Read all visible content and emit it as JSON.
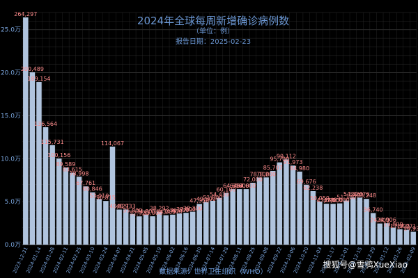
{
  "chart_data": {
    "type": "bar",
    "title": "2024年全球每周新增确诊病例数",
    "subtitle": "（单位：例）",
    "report_date": "报告日期：2025-02-23",
    "xlabel": "数据来源：世界卫生组织（WHO）",
    "ylabel": "",
    "ylim": [
      0,
      270000
    ],
    "y_ticks": [
      0,
      50000,
      100000,
      150000,
      200000,
      250000
    ],
    "y_tick_labels": [
      "0.0万",
      "5.0万",
      "10.0万",
      "15.0万",
      "20.0万",
      "25.0万"
    ],
    "grid": true,
    "bar_color": "#b0c4de",
    "label_color": "#ff8c8c",
    "categories": [
      "2023-12-31",
      "2024-01-07",
      "2024-01-14",
      "2024-01-21",
      "2024-01-28",
      "2024-02-04",
      "2024-02-11",
      "2024-02-18",
      "2024-02-25",
      "2024-03-03",
      "2024-03-10",
      "2024-03-17",
      "2024-03-24",
      "2024-03-31",
      "2024-04-07",
      "2024-04-14",
      "2024-04-21",
      "2024-04-28",
      "2024-05-05",
      "2024-05-12",
      "2024-05-19",
      "2024-05-26",
      "2024-06-02",
      "2024-06-09",
      "2024-06-16",
      "2024-06-23",
      "2024-06-30",
      "2024-07-07",
      "2024-07-14",
      "2024-07-21",
      "2024-07-28",
      "2024-08-04",
      "2024-08-11",
      "2024-08-18",
      "2024-08-25",
      "2024-09-01",
      "2024-09-08",
      "2024-09-15",
      "2024-09-22",
      "2024-09-29",
      "2024-10-06",
      "2024-10-13",
      "2024-10-20",
      "2024-10-27",
      "2024-11-03",
      "2024-11-10",
      "2024-11-17",
      "2024-11-24",
      "2024-12-01",
      "2024-12-08",
      "2024-12-15",
      "2024-12-22",
      "2024-12-29",
      "2025-01-05",
      "2025-01-12",
      "2025-01-19",
      "2025-01-26",
      "2025-02-02",
      "2025-02-09"
    ],
    "x_tick_labels": [
      "2023-12-31",
      "2024-01-14",
      "2024-01-28",
      "2024-02-11",
      "2024-02-25",
      "2024-03-10",
      "2024-03-24",
      "2024-04-07",
      "2024-04-21",
      "2024-05-05",
      "2024-05-19",
      "2024-06-02",
      "2024-06-16",
      "2024-06-30",
      "2024-07-14",
      "2024-07-28",
      "2024-08-11",
      "2024-08-25",
      "2024-09-08",
      "2024-09-22",
      "2024-10-06",
      "2024-10-20",
      "2024-11-03",
      "2024-11-17",
      "2024-12-01",
      "2024-12-15",
      "2024-12-29",
      "2025-01-12",
      "2025-01-26",
      "2025-02-09"
    ],
    "values": [
      264297,
      200489,
      189154,
      136564,
      115731,
      100156,
      89589,
      83615,
      78998,
      67761,
      60846,
      53010,
      50815,
      114067,
      40827,
      40933,
      35800,
      32920,
      34800,
      33000,
      38292,
      34200,
      34900,
      36200,
      37000,
      38300,
      47350,
      49500,
      51000,
      54439,
      60100,
      64600,
      64600,
      64600,
      72000,
      78100,
      78200,
      85707,
      95700,
      99112,
      91973,
      84980,
      69676,
      62238,
      50050,
      47600,
      47500,
      48000,
      51300,
      54820,
      54679,
      53248,
      36740,
      24600,
      24906,
      19800,
      17900,
      17271,
      14937
    ],
    "labels": [
      "264,297",
      "200,489",
      "189,154",
      "136,564",
      "115,731",
      "100,156",
      "89,589",
      "83,615",
      "78,998",
      "67,761",
      "60,846",
      "53,010",
      "50,815",
      "114,067",
      "40,827",
      "40,933",
      "35,800",
      "32,920",
      "34,800",
      "33,000",
      "38,292",
      "34,200",
      "34,900",
      "36,200",
      "37,000",
      "38,300",
      "47,350",
      "49,500",
      "51,000",
      "54,439",
      "60,100",
      "64,600",
      "64,600",
      "64,600",
      "72,000",
      "78,100",
      "78,200",
      "85,707",
      "95,700",
      "99,112",
      "91,973",
      "84,980",
      "69,676",
      "62,238",
      "50,050",
      "47,600",
      "47,500",
      "48,000",
      "51,300",
      "54,820",
      "54,679",
      "53,248",
      "36,740",
      "24,600",
      "24,906",
      "19,800",
      "17,900",
      "17,271",
      "14,937"
    ]
  },
  "watermark": "搜狐号@雪鸮XueXiao"
}
